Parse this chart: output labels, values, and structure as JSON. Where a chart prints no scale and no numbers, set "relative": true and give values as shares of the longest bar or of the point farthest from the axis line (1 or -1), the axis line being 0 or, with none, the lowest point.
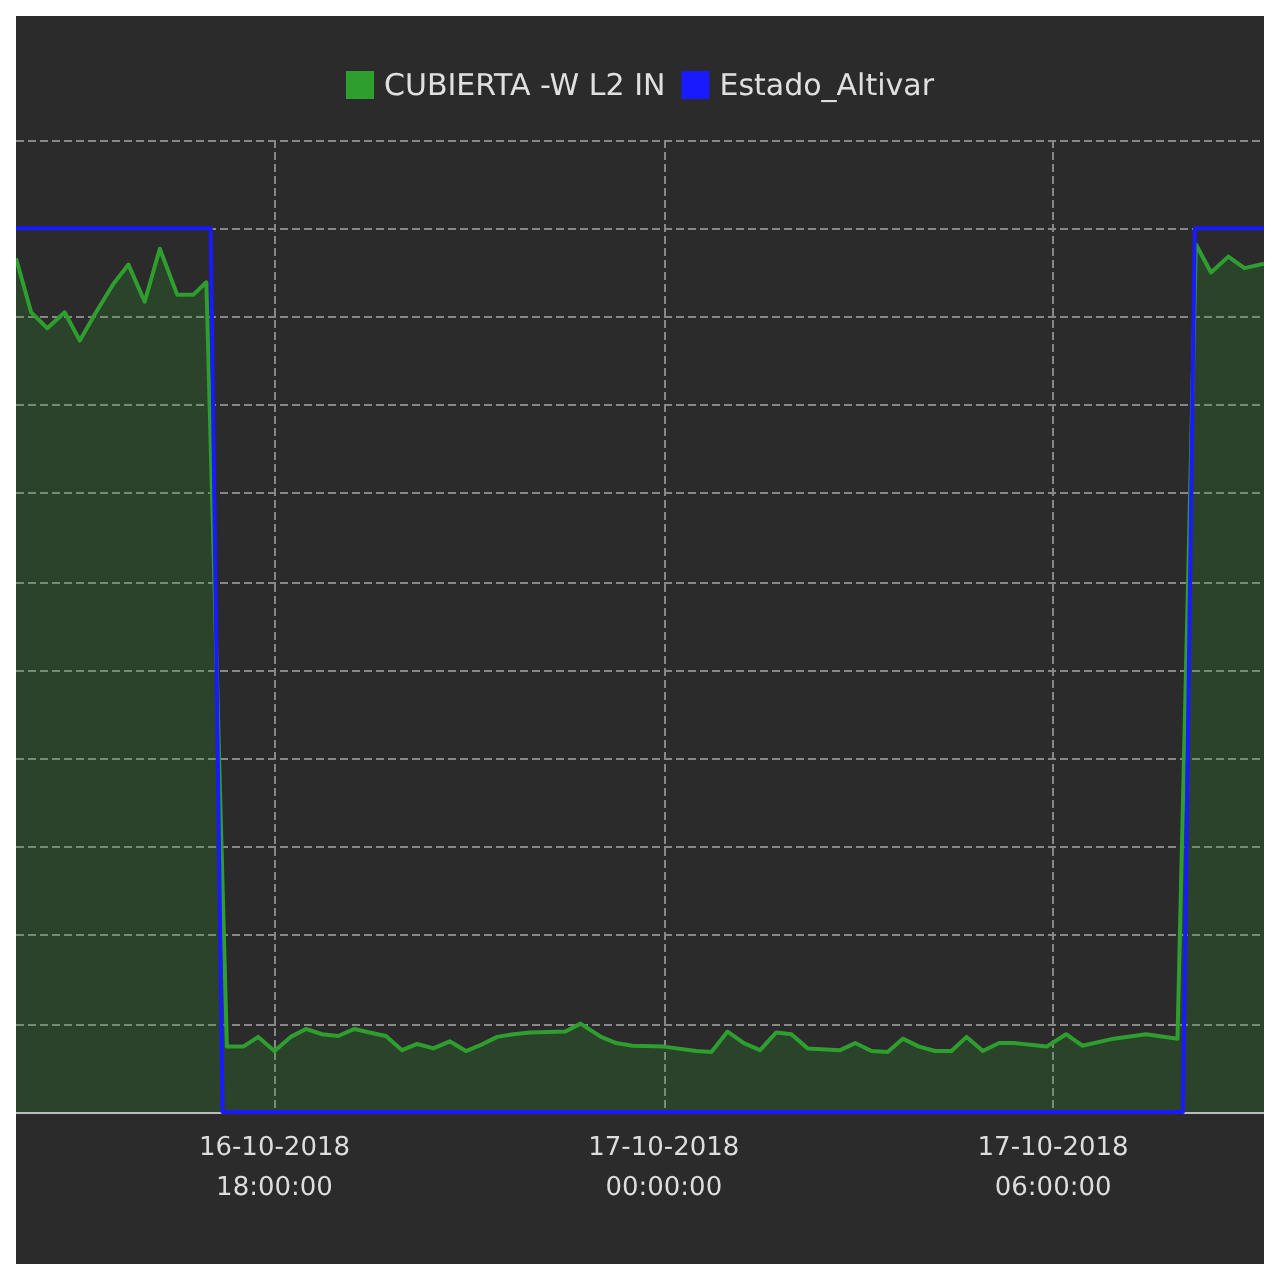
{
  "chart_data": {
    "type": "area",
    "relative": true,
    "grid": true,
    "legend": "top",
    "marker": "none",
    "line_style": "solid",
    "xlim": [
      "2018-10-16T14:01",
      "2018-10-17T09:15"
    ],
    "xticks": [
      {
        "value": "2018-10-16T18:00",
        "label": "16-10-2018\n18:00:00"
      },
      {
        "value": "2018-10-17T00:00",
        "label": "17-10-2018\n00:00:00"
      },
      {
        "value": "2018-10-17T06:00",
        "label": "17-10-2018\n06:00:00"
      }
    ],
    "series": [
      {
        "name": "CUBIERTA -W L2 IN",
        "color": "#2e9e2e",
        "x": [
          "2018-10-16T14:01",
          "2018-10-16T14:15",
          "2018-10-16T14:30",
          "2018-10-16T14:46",
          "2018-10-16T15:00",
          "2018-10-16T15:15",
          "2018-10-16T15:31",
          "2018-10-16T15:45",
          "2018-10-16T16:00",
          "2018-10-16T16:14",
          "2018-10-16T16:30",
          "2018-10-16T16:45",
          "2018-10-16T16:57",
          "2018-10-16T17:16",
          "2018-10-16T17:31",
          "2018-10-16T17:45",
          "2018-10-16T18:00",
          "2018-10-16T18:15",
          "2018-10-16T18:29",
          "2018-10-16T18:44",
          "2018-10-16T18:59",
          "2018-10-16T19:14",
          "2018-10-16T19:28",
          "2018-10-16T19:43",
          "2018-10-16T19:58",
          "2018-10-16T20:12",
          "2018-10-16T20:27",
          "2018-10-16T20:42",
          "2018-10-16T20:57",
          "2018-10-16T21:11",
          "2018-10-16T21:26",
          "2018-10-16T21:41",
          "2018-10-16T21:56",
          "2018-10-16T22:29",
          "2018-10-16T22:43",
          "2018-10-16T23:02",
          "2018-10-16T23:16",
          "2018-10-16T23:31",
          "2018-10-17T00:00",
          "2018-10-17T00:30",
          "2018-10-17T00:44",
          "2018-10-17T00:59",
          "2018-10-17T01:14",
          "2018-10-17T01:29",
          "2018-10-17T01:44",
          "2018-10-17T01:58",
          "2018-10-17T02:13",
          "2018-10-17T02:43",
          "2018-10-17T02:57",
          "2018-10-17T03:12",
          "2018-10-17T03:27",
          "2018-10-17T03:41",
          "2018-10-17T03:56",
          "2018-10-17T04:11",
          "2018-10-17T04:26",
          "2018-10-17T04:40",
          "2018-10-17T04:55",
          "2018-10-17T05:10",
          "2018-10-17T05:24",
          "2018-10-17T05:54",
          "2018-10-17T06:12",
          "2018-10-17T06:27",
          "2018-10-17T06:56",
          "2018-10-17T07:26",
          "2018-10-17T07:55",
          "2018-10-17T08:12",
          "2018-10-17T08:26",
          "2018-10-17T08:42",
          "2018-10-17T08:57",
          "2018-10-17T09:15"
        ],
        "values": [
          0.966,
          0.905,
          0.887,
          0.905,
          0.873,
          0.905,
          0.937,
          0.959,
          0.917,
          0.977,
          0.925,
          0.925,
          0.939,
          0.074,
          0.074,
          0.085,
          0.069,
          0.085,
          0.094,
          0.088,
          0.086,
          0.094,
          0.09,
          0.086,
          0.07,
          0.077,
          0.072,
          0.08,
          0.069,
          0.076,
          0.085,
          0.088,
          0.09,
          0.091,
          0.1,
          0.085,
          0.078,
          0.075,
          0.074,
          0.069,
          0.068,
          0.091,
          0.078,
          0.07,
          0.09,
          0.088,
          0.072,
          0.07,
          0.078,
          0.069,
          0.068,
          0.083,
          0.074,
          0.069,
          0.069,
          0.085,
          0.069,
          0.078,
          0.078,
          0.074,
          0.088,
          0.075,
          0.083,
          0.088,
          0.083,
          0.982,
          0.95,
          0.968,
          0.955,
          0.96
        ]
      },
      {
        "name": "Estado_Altivar",
        "color": "#1a1aff",
        "type": "line",
        "x": [
          "2018-10-16T14:01",
          "2018-10-16T17:01",
          "2018-10-16T17:12",
          "2018-10-17T08:00",
          "2018-10-17T08:11",
          "2018-10-17T09:15"
        ],
        "values": [
          1,
          1,
          0,
          0,
          1,
          1
        ]
      }
    ]
  }
}
